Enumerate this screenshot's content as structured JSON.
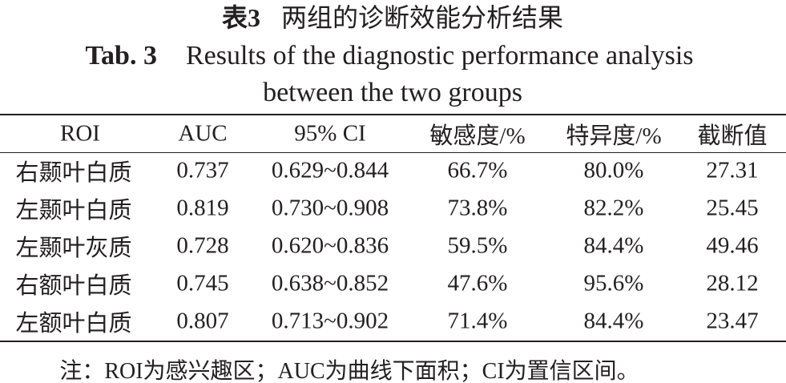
{
  "caption": {
    "title_cn_label": "表3",
    "title_cn": "两组的诊断效能分析结果",
    "title_en_label": "Tab. 3",
    "title_en_lines": [
      "Results of the diagnostic performance analysis",
      "between the two groups"
    ]
  },
  "table": {
    "header": [
      "ROI",
      "AUC",
      "95% CI",
      "敏感度/%",
      "特异度/%",
      "截断值"
    ],
    "rows": [
      [
        "右颞叶白质",
        "0.737",
        "0.629~0.844",
        "66.7%",
        "80.0%",
        "27.31"
      ],
      [
        "左颞叶白质",
        "0.819",
        "0.730~0.908",
        "73.8%",
        "82.2%",
        "25.45"
      ],
      [
        "左颞叶灰质",
        "0.728",
        "0.620~0.836",
        "59.5%",
        "84.4%",
        "49.46"
      ],
      [
        "右额叶白质",
        "0.745",
        "0.638~0.852",
        "47.6%",
        "95.6%",
        "28.12"
      ],
      [
        "左额叶白质",
        "0.807",
        "0.713~0.902",
        "71.4%",
        "84.4%",
        "23.47"
      ]
    ]
  },
  "note": "注：ROI为感兴趣区；AUC为曲线下面积；CI为置信区间。"
}
